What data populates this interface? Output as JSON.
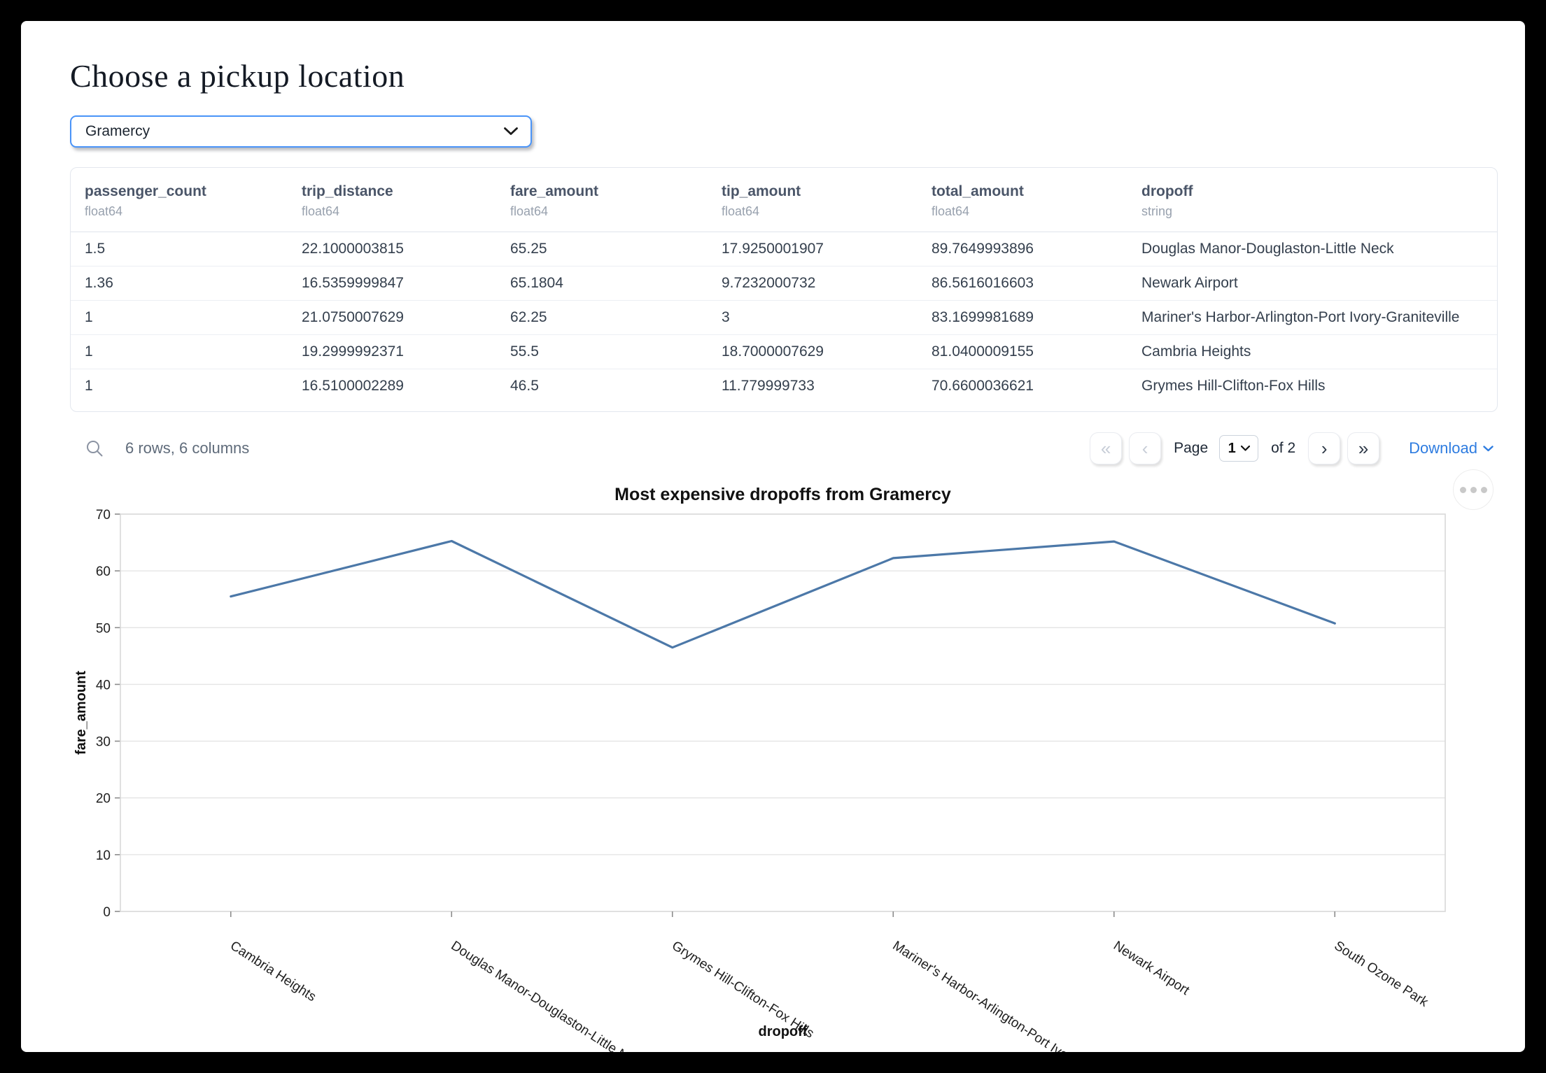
{
  "header": {
    "title": "Choose a pickup location"
  },
  "pickup_select": {
    "value": "Gramercy"
  },
  "table": {
    "columns": [
      {
        "name": "passenger_count",
        "dtype": "float64"
      },
      {
        "name": "trip_distance",
        "dtype": "float64"
      },
      {
        "name": "fare_amount",
        "dtype": "float64"
      },
      {
        "name": "tip_amount",
        "dtype": "float64"
      },
      {
        "name": "total_amount",
        "dtype": "float64"
      },
      {
        "name": "dropoff",
        "dtype": "string"
      }
    ],
    "rows": [
      [
        "1.5",
        "22.1000003815",
        "65.25",
        "17.9250001907",
        "89.7649993896",
        "Douglas Manor-Douglaston-Little Neck"
      ],
      [
        "1.36",
        "16.5359999847",
        "65.1804",
        "9.7232000732",
        "86.5616016603",
        "Newark Airport"
      ],
      [
        "1",
        "21.0750007629",
        "62.25",
        "3",
        "83.1699981689",
        "Mariner's Harbor-Arlington-Port Ivory-Graniteville"
      ],
      [
        "1",
        "19.2999992371",
        "55.5",
        "18.7000007629",
        "81.0400009155",
        "Cambria Heights"
      ],
      [
        "1",
        "16.5100002289",
        "46.5",
        "11.779999733",
        "70.6600036621",
        "Grymes Hill-Clifton-Fox Hills"
      ]
    ]
  },
  "table_footer": {
    "summary": "6 rows, 6 columns",
    "page_label": "Page",
    "page_value": "1",
    "of_label": "of 2",
    "download_label": "Download",
    "first_glyph": "«",
    "prev_glyph": "‹",
    "next_glyph": "›",
    "last_glyph": "»"
  },
  "chart_data": {
    "type": "line",
    "title": "Most expensive dropoffs from Gramercy",
    "xlabel": "dropoff",
    "ylabel": "fare_amount",
    "categories": [
      "Cambria Heights",
      "Douglas Manor-Douglaston-Little Neck",
      "Grymes Hill-Clifton-Fox Hills",
      "Mariner's Harbor-Arlington-Port Ivory-Graniteville",
      "Newark Airport",
      "South Ozone Park"
    ],
    "x_tick_labels": [
      "Cambria Heights",
      "Douglas Manor-Douglaston-Little Neck",
      "Grymes Hill-Clifton-Fox Hills",
      "Mariner's Harbor-Arlington-Port Ivory-…",
      "Newark Airport",
      "South Ozone Park"
    ],
    "values": [
      55.5,
      65.25,
      46.5,
      62.25,
      65.1804,
      50.75
    ],
    "ylim": [
      0,
      70
    ],
    "ytick_step": 10,
    "grid": true,
    "legend": "none",
    "line_color": "#4c78a8",
    "grid_color": "#e4e4e4",
    "border_color": "#d8d8d8",
    "tick_color": "#8c8c8c",
    "label_color": "#1f1f1f"
  }
}
